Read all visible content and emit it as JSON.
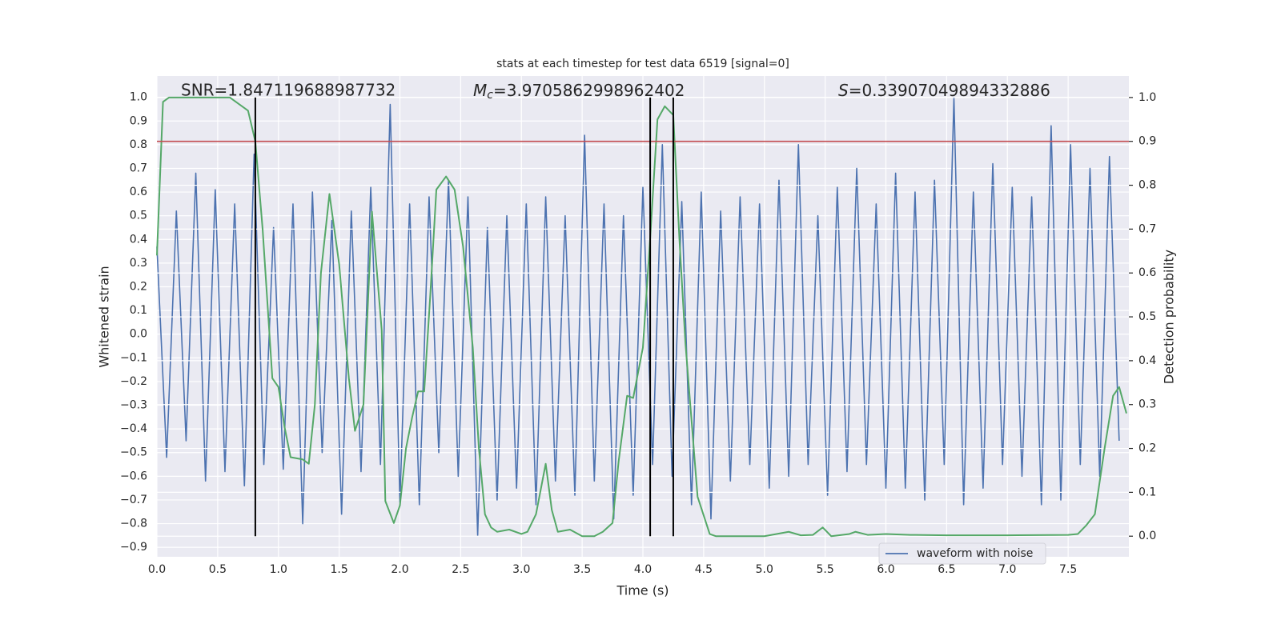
{
  "chart_data": {
    "type": "line",
    "title": "stats at each timestep for test data 6519 [signal=0]",
    "xlabel": "Time (s)",
    "ylabel": "Whitened strain",
    "y2label": "Detection probability",
    "annotations": [
      {
        "text": "SNR=1.847119688987732"
      },
      {
        "symbol": "M",
        "subscript": "c",
        "text": "=3.9705862998962402"
      },
      {
        "symbol": "S",
        "text": "=0.33907049894332886"
      }
    ],
    "x": [
      0,
      0.08,
      0.16,
      0.24,
      0.32,
      0.4,
      0.48,
      0.56,
      0.64,
      0.72,
      0.8,
      0.88,
      0.96,
      1.04,
      1.12,
      1.2,
      1.28,
      1.36,
      1.44,
      1.52,
      1.6,
      1.68,
      1.76,
      1.84,
      1.92,
      2.0,
      2.08,
      2.16,
      2.24,
      2.32,
      2.4,
      2.48,
      2.56,
      2.64,
      2.72,
      2.8,
      2.88,
      2.96,
      3.04,
      3.12,
      3.2,
      3.28,
      3.36,
      3.44,
      3.52,
      3.6,
      3.68,
      3.76,
      3.84,
      3.92,
      4.0,
      4.08,
      4.16,
      4.24,
      4.32,
      4.4,
      4.48,
      4.56,
      4.64,
      4.72,
      4.8,
      4.88,
      4.96,
      5.04,
      5.12,
      5.2,
      5.28,
      5.36,
      5.44,
      5.52,
      5.6,
      5.68,
      5.76,
      5.84,
      5.92,
      6.0,
      6.08,
      6.16,
      6.24,
      6.32,
      6.4,
      6.48,
      6.56,
      6.64,
      6.72,
      6.8,
      6.88,
      6.96,
      7.04,
      7.12,
      7.2,
      7.28,
      7.36,
      7.44,
      7.52,
      7.6,
      7.68,
      7.76,
      7.84,
      7.92
    ],
    "series": [
      {
        "name": "waveform with noise",
        "color": "#4c72b0",
        "values": [
          0.37,
          -0.52,
          0.52,
          -0.45,
          0.68,
          -0.62,
          0.61,
          -0.58,
          0.55,
          -0.64,
          0.76,
          -0.55,
          0.45,
          -0.57,
          0.55,
          -0.8,
          0.6,
          -0.5,
          0.48,
          -0.76,
          0.52,
          -0.58,
          0.62,
          -0.55,
          0.97,
          -0.71,
          0.55,
          -0.72,
          0.58,
          -0.5,
          0.65,
          -0.6,
          0.58,
          -0.85,
          0.45,
          -0.7,
          0.5,
          -0.65,
          0.55,
          -0.72,
          0.58,
          -0.62,
          0.5,
          -0.68,
          0.84,
          -0.62,
          0.55,
          -0.78,
          0.5,
          -0.68,
          0.62,
          -0.55,
          0.8,
          -0.6,
          0.56,
          -0.72,
          0.6,
          -0.78,
          0.52,
          -0.62,
          0.58,
          -0.55,
          0.55,
          -0.65,
          0.65,
          -0.6,
          0.8,
          -0.55,
          0.5,
          -0.68,
          0.62,
          -0.58,
          0.7,
          -0.55,
          0.55,
          -0.65,
          0.68,
          -0.65,
          0.6,
          -0.7,
          0.65,
          -0.55,
          1.0,
          -0.72,
          0.6,
          -0.65,
          0.72,
          -0.55,
          0.62,
          -0.6,
          0.58,
          -0.72,
          0.88,
          -0.7,
          0.8,
          -0.55,
          0.7,
          -0.6,
          0.75,
          -0.45
        ]
      },
      {
        "color": "#55a868",
        "axis": "y2",
        "x": [
          0,
          0.05,
          0.1,
          0.2,
          0.6,
          0.65,
          0.75,
          0.81,
          0.87,
          0.95,
          1.0,
          1.05,
          1.1,
          1.2,
          1.25,
          1.3,
          1.35,
          1.42,
          1.5,
          1.58,
          1.63,
          1.7,
          1.77,
          1.85,
          1.88,
          1.95,
          2.0,
          2.05,
          2.1,
          2.15,
          2.2,
          2.25,
          2.3,
          2.38,
          2.45,
          2.52,
          2.6,
          2.65,
          2.7,
          2.75,
          2.8,
          2.9,
          3.0,
          3.05,
          3.12,
          3.2,
          3.25,
          3.3,
          3.4,
          3.5,
          3.6,
          3.67,
          3.75,
          3.8,
          3.87,
          3.92,
          4.0,
          4.06,
          4.12,
          4.18,
          4.25,
          4.3,
          4.35,
          4.45,
          4.55,
          4.6,
          5.0,
          5.1,
          5.2,
          5.3,
          5.4,
          5.48,
          5.55,
          5.7,
          5.75,
          5.85,
          6.0,
          6.2,
          6.5,
          7.0,
          7.5,
          7.58,
          7.65,
          7.72,
          7.8,
          7.87,
          7.92,
          7.98
        ],
        "values": [
          0.64,
          0.99,
          1.0,
          1.0,
          1.0,
          0.99,
          0.97,
          0.9,
          0.7,
          0.36,
          0.34,
          0.25,
          0.18,
          0.175,
          0.165,
          0.3,
          0.6,
          0.78,
          0.62,
          0.36,
          0.24,
          0.3,
          0.74,
          0.47,
          0.08,
          0.03,
          0.07,
          0.2,
          0.27,
          0.33,
          0.33,
          0.55,
          0.79,
          0.82,
          0.79,
          0.66,
          0.43,
          0.2,
          0.05,
          0.02,
          0.01,
          0.015,
          0.005,
          0.01,
          0.05,
          0.165,
          0.06,
          0.01,
          0.015,
          0.0,
          0.0,
          0.01,
          0.03,
          0.17,
          0.32,
          0.315,
          0.43,
          0.68,
          0.95,
          0.98,
          0.96,
          0.68,
          0.44,
          0.09,
          0.005,
          0.0,
          0.0,
          0.005,
          0.01,
          0.002,
          0.003,
          0.02,
          0.0,
          0.005,
          0.01,
          0.003,
          0.005,
          0.003,
          0.002,
          0.002,
          0.003,
          0.005,
          0.025,
          0.05,
          0.2,
          0.32,
          0.34,
          0.28
        ]
      }
    ],
    "hlines": [
      {
        "value": 0.9,
        "axis": "y2",
        "color": "#c44e52"
      }
    ],
    "vlines": [
      {
        "value": 0.81,
        "color": "#000000"
      },
      {
        "value": 4.06,
        "color": "#000000"
      },
      {
        "value": 4.25,
        "color": "#000000"
      }
    ],
    "vline_span": [
      0,
      1
    ],
    "xlim": [
      0,
      8
    ],
    "ylim": [
      -0.94,
      1.09
    ],
    "y2lim": [
      -0.047,
      1.049
    ],
    "xticks": [
      {
        "value": 0,
        "label": "0.0"
      },
      {
        "value": 0.5,
        "label": "0.5"
      },
      {
        "value": 1,
        "label": "1.0"
      },
      {
        "value": 1.5,
        "label": "1.5"
      },
      {
        "value": 2,
        "label": "2.0"
      },
      {
        "value": 2.5,
        "label": "2.5"
      },
      {
        "value": 3,
        "label": "3.0"
      },
      {
        "value": 3.5,
        "label": "3.5"
      },
      {
        "value": 4,
        "label": "4.0"
      },
      {
        "value": 4.5,
        "label": "4.5"
      },
      {
        "value": 5,
        "label": "5.0"
      },
      {
        "value": 5.5,
        "label": "5.5"
      },
      {
        "value": 6,
        "label": "6.0"
      },
      {
        "value": 6.5,
        "label": "6.5"
      },
      {
        "value": 7,
        "label": "7.0"
      },
      {
        "value": 7.5,
        "label": "7.5"
      }
    ],
    "yticks": [
      {
        "value": -0.9,
        "label": "−0.9"
      },
      {
        "value": -0.8,
        "label": "−0.8"
      },
      {
        "value": -0.7,
        "label": "−0.7"
      },
      {
        "value": -0.6,
        "label": "−0.6"
      },
      {
        "value": -0.5,
        "label": "−0.5"
      },
      {
        "value": -0.4,
        "label": "−0.4"
      },
      {
        "value": -0.3,
        "label": "−0.3"
      },
      {
        "value": -0.2,
        "label": "−0.2"
      },
      {
        "value": -0.1,
        "label": "−0.1"
      },
      {
        "value": 0,
        "label": "0.0"
      },
      {
        "value": 0.1,
        "label": "0.1"
      },
      {
        "value": 0.2,
        "label": "0.2"
      },
      {
        "value": 0.3,
        "label": "0.3"
      },
      {
        "value": 0.4,
        "label": "0.4"
      },
      {
        "value": 0.5,
        "label": "0.5"
      },
      {
        "value": 0.6,
        "label": "0.6"
      },
      {
        "value": 0.7,
        "label": "0.7"
      },
      {
        "value": 0.8,
        "label": "0.8"
      },
      {
        "value": 0.9,
        "label": "0.9"
      },
      {
        "value": 1,
        "label": "1.0"
      }
    ],
    "y2ticks": [
      {
        "value": 0,
        "label": "0.0"
      },
      {
        "value": 0.1,
        "label": "0.1"
      },
      {
        "value": 0.2,
        "label": "0.2"
      },
      {
        "value": 0.3,
        "label": "0.3"
      },
      {
        "value": 0.4,
        "label": "0.4"
      },
      {
        "value": 0.5,
        "label": "0.5"
      },
      {
        "value": 0.6,
        "label": "0.6"
      },
      {
        "value": 0.7,
        "label": "0.7"
      },
      {
        "value": 0.8,
        "label": "0.8"
      },
      {
        "value": 0.9,
        "label": "0.9"
      },
      {
        "value": 1,
        "label": "1.0"
      }
    ],
    "grid": true,
    "legend": "lower right"
  }
}
